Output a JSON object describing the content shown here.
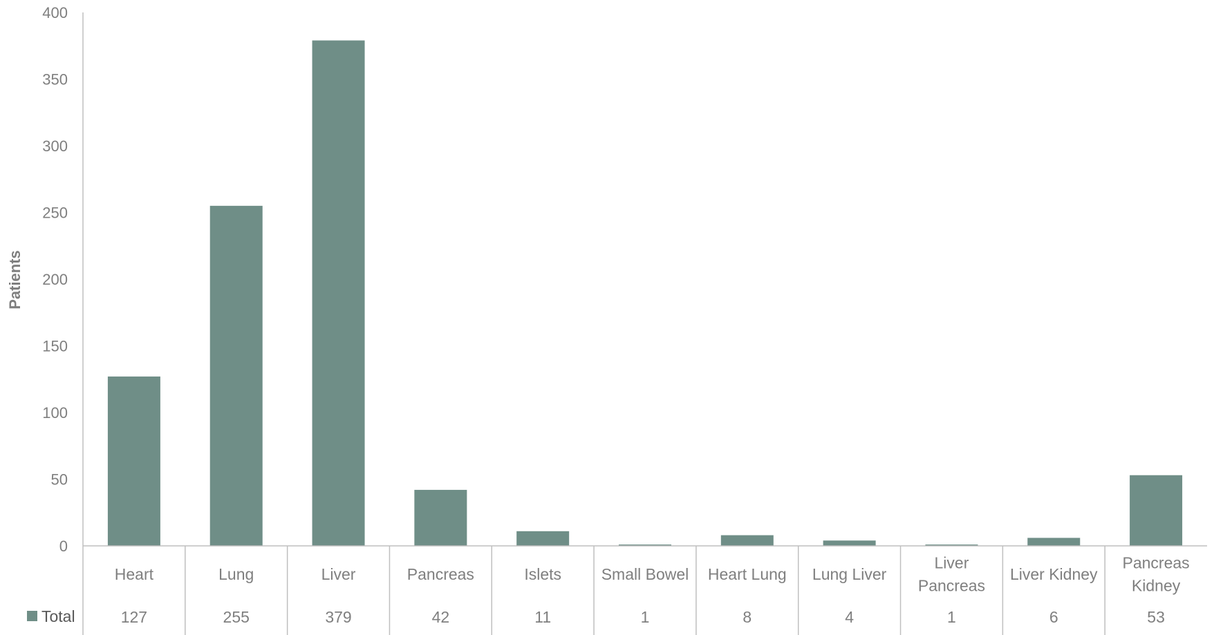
{
  "chart_data": {
    "type": "bar",
    "title": "",
    "xlabel": "",
    "ylabel": "Patients",
    "ylim": [
      0,
      400
    ],
    "yticks": [
      0,
      50,
      100,
      150,
      200,
      250,
      300,
      350,
      400
    ],
    "grid": false,
    "legend": "data-table-left",
    "bar_color": "#6f8e87",
    "categories": [
      [
        "Heart"
      ],
      [
        "Lung"
      ],
      [
        "Liver"
      ],
      [
        "Pancreas"
      ],
      [
        "Islets"
      ],
      [
        "Small Bowel"
      ],
      [
        "Heart Lung"
      ],
      [
        "Lung Liver"
      ],
      [
        "Liver",
        "Pancreas"
      ],
      [
        "Liver Kidney"
      ],
      [
        "Pancreas",
        "Kidney"
      ]
    ],
    "series": [
      {
        "name": "Total",
        "values": [
          127,
          255,
          379,
          42,
          11,
          1,
          8,
          4,
          1,
          6,
          53
        ]
      }
    ]
  }
}
